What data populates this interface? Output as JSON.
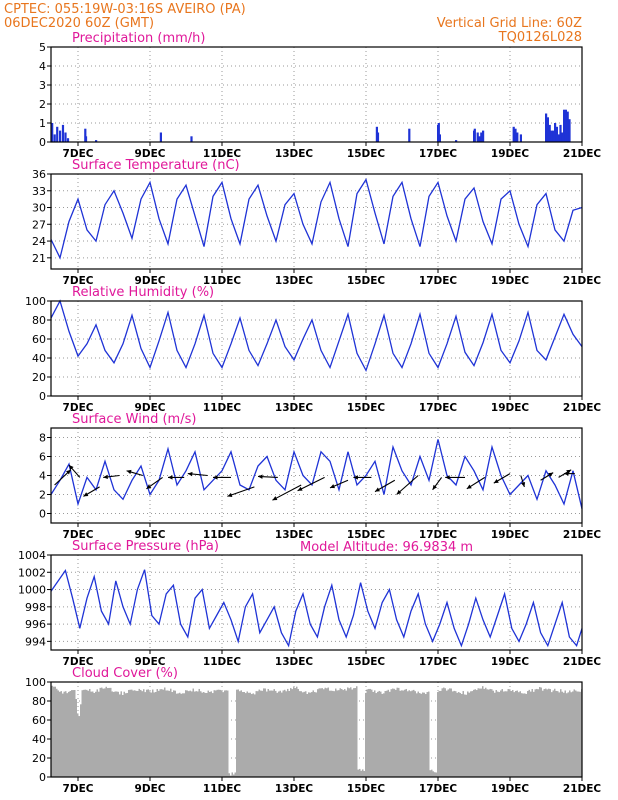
{
  "header": {
    "line1_left": "CPTEC:   055:19W-03:16S   AVEIRO (PA)",
    "line2_left": "06DEC2020 60Z (GMT)",
    "line1_right": "Vertical Grid Line: 60Z",
    "line2_right": "TQ0126L028",
    "model_altitude": "Model Altitude: 96.9834 m"
  },
  "colors": {
    "header": "#e8761e",
    "title": "#e0189a",
    "line": "#1f33d6",
    "bar": "#1f33d6",
    "cloud": "#ababab",
    "grid": "#9a9a9a"
  },
  "x_axis": {
    "range_days": [
      6.25,
      21.0
    ],
    "ticks": [
      7,
      9,
      11,
      13,
      15,
      17,
      19,
      21
    ],
    "tick_labels": [
      "7DEC",
      "9DEC",
      "11DEC",
      "13DEC",
      "15DEC",
      "17DEC",
      "19DEC",
      "21DEC"
    ]
  },
  "chart_data": [
    {
      "type": "bar",
      "title": "Precipitation (mm/h)",
      "ylim": [
        0,
        5
      ],
      "yticks": [
        0,
        1,
        2,
        3,
        4,
        5
      ],
      "x": [
        6.28,
        6.35,
        6.42,
        6.5,
        6.58,
        6.65,
        6.72,
        7.2,
        7.22,
        7.5,
        9.3,
        10.15,
        15.3,
        15.33,
        16.2,
        17.0,
        17.02,
        17.05,
        17.5,
        18.0,
        18.02,
        18.1,
        18.15,
        18.2,
        18.25,
        19.1,
        19.15,
        19.2,
        19.3,
        20.0,
        20.05,
        20.1,
        20.15,
        20.2,
        20.25,
        20.3,
        20.35,
        20.4,
        20.45,
        20.5,
        20.55,
        20.6,
        20.65
      ],
      "values": [
        1.0,
        0.4,
        0.8,
        0.6,
        0.9,
        0.5,
        0.2,
        0.7,
        0.3,
        0.1,
        0.5,
        0.3,
        0.8,
        0.5,
        0.7,
        0.9,
        1.0,
        0.4,
        0.1,
        0.6,
        0.7,
        0.5,
        0.3,
        0.5,
        0.6,
        0.8,
        0.7,
        0.5,
        0.4,
        1.5,
        1.3,
        0.9,
        0.6,
        0.6,
        1.0,
        0.8,
        0.4,
        0.9,
        0.5,
        1.7,
        1.7,
        1.6,
        1.2
      ]
    },
    {
      "type": "line",
      "title": "Surface Temperature (nC)",
      "ylim": [
        19,
        36
      ],
      "yticks": [
        21,
        24,
        27,
        30,
        33,
        36
      ],
      "x": [
        6.25,
        6.5,
        6.75,
        7.0,
        7.25,
        7.5,
        7.75,
        8.0,
        8.25,
        8.5,
        8.75,
        9.0,
        9.25,
        9.5,
        9.75,
        10.0,
        10.25,
        10.5,
        10.75,
        11.0,
        11.25,
        11.5,
        11.75,
        12.0,
        12.25,
        12.5,
        12.75,
        13.0,
        13.25,
        13.5,
        13.75,
        14.0,
        14.25,
        14.5,
        14.75,
        15.0,
        15.25,
        15.5,
        15.75,
        16.0,
        16.25,
        16.5,
        16.75,
        17.0,
        17.25,
        17.5,
        17.75,
        18.0,
        18.25,
        18.5,
        18.75,
        19.0,
        19.25,
        19.5,
        19.75,
        20.0,
        20.25,
        20.5,
        20.75,
        21.0
      ],
      "values": [
        24.3,
        21.0,
        27.5,
        31.5,
        26.0,
        24.0,
        30.5,
        33.0,
        29.0,
        24.5,
        31.5,
        34.5,
        28.0,
        23.5,
        31.5,
        34.0,
        28.5,
        23.0,
        32.0,
        34.5,
        28.0,
        23.5,
        31.5,
        34.0,
        28.5,
        24.0,
        30.5,
        32.5,
        27.0,
        23.5,
        31.0,
        34.5,
        28.0,
        23.0,
        32.5,
        35.0,
        29.0,
        23.5,
        32.0,
        34.5,
        28.0,
        23.0,
        32.0,
        34.5,
        28.5,
        24.0,
        31.5,
        33.5,
        27.5,
        23.5,
        31.5,
        33.0,
        27.0,
        23.0,
        30.5,
        32.5,
        26.0,
        24.0,
        29.5,
        30.0
      ]
    },
    {
      "type": "line",
      "title": "Relative Humidity (%)",
      "ylim": [
        0,
        100
      ],
      "yticks": [
        0,
        20,
        40,
        60,
        80,
        100
      ],
      "x": [
        6.25,
        6.5,
        6.75,
        7.0,
        7.25,
        7.5,
        7.75,
        8.0,
        8.25,
        8.5,
        8.75,
        9.0,
        9.25,
        9.5,
        9.75,
        10.0,
        10.25,
        10.5,
        10.75,
        11.0,
        11.25,
        11.5,
        11.75,
        12.0,
        12.25,
        12.5,
        12.75,
        13.0,
        13.25,
        13.5,
        13.75,
        14.0,
        14.25,
        14.5,
        14.75,
        15.0,
        15.25,
        15.5,
        15.75,
        16.0,
        16.25,
        16.5,
        16.75,
        17.0,
        17.25,
        17.5,
        17.75,
        18.0,
        18.25,
        18.5,
        18.75,
        19.0,
        19.25,
        19.5,
        19.75,
        20.0,
        20.25,
        20.5,
        20.75,
        21.0
      ],
      "values": [
        82,
        100,
        68,
        42,
        55,
        75,
        48,
        35,
        55,
        85,
        50,
        30,
        58,
        88,
        48,
        30,
        55,
        85,
        45,
        30,
        55,
        82,
        48,
        32,
        55,
        80,
        52,
        38,
        60,
        80,
        48,
        30,
        58,
        86,
        45,
        27,
        55,
        85,
        45,
        30,
        55,
        86,
        45,
        30,
        55,
        84,
        46,
        32,
        56,
        86,
        48,
        35,
        58,
        88,
        48,
        38,
        62,
        86,
        65,
        52
      ]
    },
    {
      "type": "line",
      "title": "Surface Wind (m/s)",
      "ylim": [
        -1,
        9
      ],
      "yticks": [
        0,
        2,
        4,
        6,
        8
      ],
      "x": [
        6.25,
        6.5,
        6.75,
        7.0,
        7.25,
        7.5,
        7.75,
        8.0,
        8.25,
        8.5,
        8.75,
        9.0,
        9.25,
        9.5,
        9.75,
        10.0,
        10.25,
        10.5,
        10.75,
        11.0,
        11.25,
        11.5,
        11.75,
        12.0,
        12.25,
        12.5,
        12.75,
        13.0,
        13.25,
        13.5,
        13.75,
        14.0,
        14.25,
        14.5,
        14.75,
        15.0,
        15.25,
        15.5,
        15.75,
        16.0,
        16.25,
        16.5,
        16.75,
        17.0,
        17.25,
        17.5,
        17.75,
        18.0,
        18.25,
        18.5,
        18.75,
        19.0,
        19.25,
        19.5,
        19.75,
        20.0,
        20.25,
        20.5,
        20.75,
        21.0
      ],
      "values": [
        2.0,
        3.5,
        5.2,
        1.0,
        3.8,
        2.5,
        5.5,
        2.5,
        1.5,
        3.5,
        5.0,
        2.0,
        3.5,
        6.8,
        3.0,
        4.5,
        6.5,
        2.5,
        3.5,
        4.5,
        6.5,
        3.0,
        2.5,
        5.0,
        6.0,
        3.5,
        2.5,
        6.5,
        4.0,
        3.0,
        6.5,
        5.5,
        2.5,
        6.5,
        3.0,
        4.0,
        5.5,
        2.0,
        7.0,
        4.5,
        3.0,
        6.0,
        3.5,
        7.8,
        4.0,
        3.0,
        6.0,
        4.5,
        2.5,
        7.0,
        4.0,
        2.0,
        3.0,
        4.0,
        1.5,
        4.5,
        3.0,
        1.0,
        4.5,
        0.5
      ],
      "wind_vectors": [
        {
          "x": 6.35,
          "y": 3.0,
          "dx": 0.45,
          "dy": 1.6
        },
        {
          "x": 7.05,
          "y": 3.8,
          "dx": -0.3,
          "dy": 1.3
        },
        {
          "x": 7.6,
          "y": 2.8,
          "dx": -0.45,
          "dy": -1.0
        },
        {
          "x": 8.15,
          "y": 4.0,
          "dx": -0.45,
          "dy": -0.2
        },
        {
          "x": 8.8,
          "y": 4.0,
          "dx": -0.45,
          "dy": 0.5
        },
        {
          "x": 9.35,
          "y": 3.8,
          "dx": -0.45,
          "dy": -1.2
        },
        {
          "x": 9.95,
          "y": 3.8,
          "dx": -0.45,
          "dy": 0.0
        },
        {
          "x": 10.6,
          "y": 4.0,
          "dx": -0.55,
          "dy": 0.2
        },
        {
          "x": 11.25,
          "y": 3.8,
          "dx": -0.5,
          "dy": 0.0
        },
        {
          "x": 11.9,
          "y": 2.8,
          "dx": -0.75,
          "dy": -1.0
        },
        {
          "x": 12.55,
          "y": 3.8,
          "dx": -0.55,
          "dy": 0.1
        },
        {
          "x": 13.2,
          "y": 3.0,
          "dx": -0.8,
          "dy": -1.6
        },
        {
          "x": 13.85,
          "y": 3.8,
          "dx": -0.75,
          "dy": -1.4
        },
        {
          "x": 14.5,
          "y": 3.5,
          "dx": -0.5,
          "dy": -0.8
        },
        {
          "x": 15.15,
          "y": 3.8,
          "dx": -0.5,
          "dy": 0.0
        },
        {
          "x": 15.8,
          "y": 3.5,
          "dx": -0.55,
          "dy": -1.2
        },
        {
          "x": 16.45,
          "y": 4.0,
          "dx": -0.6,
          "dy": -2.0
        },
        {
          "x": 17.1,
          "y": 3.8,
          "dx": -0.25,
          "dy": -1.3
        },
        {
          "x": 17.75,
          "y": 3.8,
          "dx": -0.55,
          "dy": 0.0
        },
        {
          "x": 18.3,
          "y": 3.8,
          "dx": -0.5,
          "dy": -1.2
        },
        {
          "x": 19.0,
          "y": 4.2,
          "dx": -0.45,
          "dy": -1.0
        },
        {
          "x": 19.3,
          "y": 4.0,
          "dx": 0.1,
          "dy": -1.2
        },
        {
          "x": 19.85,
          "y": 3.5,
          "dx": 0.35,
          "dy": 0.8
        },
        {
          "x": 20.35,
          "y": 3.8,
          "dx": 0.35,
          "dy": 0.8
        },
        {
          "x": 20.8,
          "y": 4.2,
          "dx": -0.3,
          "dy": 0.0
        }
      ]
    },
    {
      "type": "line",
      "title": "Surface Pressure (hPa)",
      "ylim": [
        993,
        1004
      ],
      "yticks": [
        994,
        996,
        998,
        1000,
        1002,
        1004
      ],
      "x": [
        6.25,
        6.45,
        6.65,
        6.85,
        7.05,
        7.25,
        7.45,
        7.65,
        7.85,
        8.05,
        8.25,
        8.45,
        8.65,
        8.85,
        9.05,
        9.25,
        9.45,
        9.65,
        9.85,
        10.05,
        10.25,
        10.45,
        10.65,
        10.85,
        11.05,
        11.25,
        11.45,
        11.65,
        11.85,
        12.05,
        12.25,
        12.45,
        12.65,
        12.85,
        13.05,
        13.25,
        13.45,
        13.65,
        13.85,
        14.05,
        14.25,
        14.45,
        14.65,
        14.85,
        15.05,
        15.25,
        15.45,
        15.65,
        15.85,
        16.05,
        16.25,
        16.45,
        16.65,
        16.85,
        17.05,
        17.25,
        17.45,
        17.65,
        17.85,
        18.05,
        18.25,
        18.45,
        18.65,
        18.85,
        19.05,
        19.25,
        19.45,
        19.65,
        19.85,
        20.05,
        20.25,
        20.45,
        20.65,
        20.85,
        21.0
      ],
      "values": [
        999.8,
        1001.0,
        1002.2,
        999.0,
        995.5,
        999.0,
        1001.5,
        997.5,
        996.0,
        1001.0,
        998.0,
        996.0,
        1000.0,
        1002.3,
        997.0,
        996.0,
        999.5,
        1000.5,
        996.0,
        994.5,
        999.0,
        1000.0,
        995.5,
        997.0,
        998.5,
        996.5,
        994.0,
        998.0,
        999.5,
        995.0,
        996.5,
        998.0,
        995.0,
        993.5,
        997.5,
        999.5,
        996.0,
        994.5,
        998.0,
        1000.5,
        996.5,
        994.5,
        997.0,
        1000.8,
        997.5,
        995.5,
        998.5,
        1000.0,
        996.5,
        994.5,
        997.5,
        999.5,
        996.0,
        994.0,
        996.0,
        998.5,
        995.5,
        993.5,
        996.0,
        999.0,
        996.5,
        994.5,
        997.0,
        999.5,
        995.5,
        994.0,
        996.0,
        998.5,
        995.0,
        993.5,
        996.0,
        998.5,
        994.5,
        993.5,
        995.5
      ]
    },
    {
      "type": "area",
      "title": "Cloud Cover (%)",
      "ylim": [
        0,
        100
      ],
      "yticks": [
        0,
        20,
        40,
        60,
        80,
        100
      ],
      "x": [
        6.3,
        6.6,
        6.9,
        7.0,
        7.1,
        7.4,
        7.8,
        8.2,
        8.6,
        9.0,
        9.4,
        9.8,
        10.2,
        10.6,
        11.0,
        11.35,
        11.4,
        11.45,
        11.8,
        12.2,
        12.6,
        13.0,
        13.4,
        13.8,
        14.2,
        14.6,
        14.9,
        15.0,
        15.1,
        15.4,
        15.8,
        16.2,
        16.6,
        16.9,
        17.0,
        17.1,
        17.4,
        17.8,
        18.2,
        18.6,
        19.0,
        19.4,
        19.8,
        20.2,
        20.6,
        21.0
      ],
      "values": [
        97,
        90,
        95,
        60,
        95,
        92,
        96,
        90,
        94,
        92,
        95,
        90,
        94,
        91,
        93,
        5,
        95,
        92,
        90,
        94,
        92,
        96,
        90,
        95,
        93,
        96,
        10,
        92,
        94,
        90,
        95,
        93,
        90,
        8,
        92,
        95,
        93,
        90,
        96,
        92,
        94,
        91,
        95,
        93,
        92,
        94
      ]
    }
  ]
}
